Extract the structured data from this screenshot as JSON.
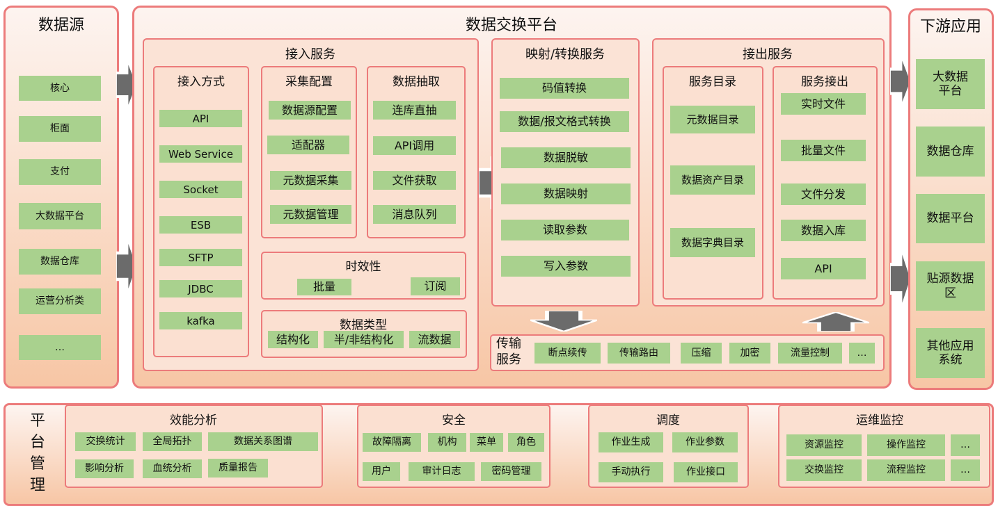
{
  "colors": {
    "panel_border": "#ec7b7b",
    "item_fill": "#a9d18e",
    "arrow": "#6b6b6b"
  },
  "sources": {
    "title": "数据源",
    "items": [
      "核心",
      "柜面",
      "支付",
      "大数据平台",
      "数据仓库",
      "运营分析类",
      "…"
    ]
  },
  "platform": {
    "title": "数据交换平台",
    "ingest": {
      "title": "接入服务",
      "methods": {
        "title": "接入方式",
        "items": [
          "API",
          "Web Service",
          "Socket",
          "ESB",
          "SFTP",
          "JDBC",
          "kafka"
        ]
      },
      "collect": {
        "title": "采集配置",
        "items": [
          "数据源配置",
          "适配器",
          "元数据采集",
          "元数据管理"
        ]
      },
      "extract": {
        "title": "数据抽取",
        "items": [
          "连库直抽",
          "API调用",
          "文件获取",
          "消息队列"
        ]
      },
      "timeliness": {
        "title": "时效性",
        "items": [
          "批量",
          "订阅"
        ]
      },
      "datatype": {
        "title": "数据类型",
        "items": [
          "结构化",
          "半/非结构化",
          "流数据"
        ]
      }
    },
    "mapping": {
      "title": "映射/转换服务",
      "items": [
        "码值转换",
        "数据/报文格式转换",
        "数据脱敏",
        "数据映射",
        "读取参数",
        "写入参数"
      ]
    },
    "egress": {
      "title": "接出服务",
      "catalog": {
        "title": "服务目录",
        "items": [
          "元数据目录",
          "数据资产目录",
          "数据字典目录"
        ]
      },
      "output": {
        "title": "服务接出",
        "items": [
          "实时文件",
          "批量文件",
          "文件分发",
          "数据入库",
          "API"
        ]
      }
    },
    "transport": {
      "title": "传输\n服务",
      "items": [
        "断点续传",
        "传输路由",
        "压缩",
        "加密",
        "流量控制",
        "…"
      ]
    }
  },
  "downstream": {
    "title": "下游应用",
    "items": [
      "大数据\n平台",
      "数据仓库",
      "数据平台",
      "贴源数据\n区",
      "其他应用\n系统"
    ]
  },
  "management": {
    "title": "平\n台\n管\n理",
    "perf": {
      "title": "效能分析",
      "items": [
        "交换统计",
        "全局拓扑",
        "数据关系图谱",
        "影响分析",
        "血统分析",
        "质量报告"
      ]
    },
    "security": {
      "title": "安全",
      "items": [
        "故障隔离",
        "机构",
        "菜单",
        "角色",
        "用户",
        "审计日志",
        "密码管理"
      ]
    },
    "schedule": {
      "title": "调度",
      "items": [
        "作业生成",
        "作业参数",
        "手动执行",
        "作业接口"
      ]
    },
    "ops": {
      "title": "运维监控",
      "items": [
        "资源监控",
        "操作监控",
        "…",
        "交换监控",
        "流程监控",
        "…"
      ]
    }
  }
}
